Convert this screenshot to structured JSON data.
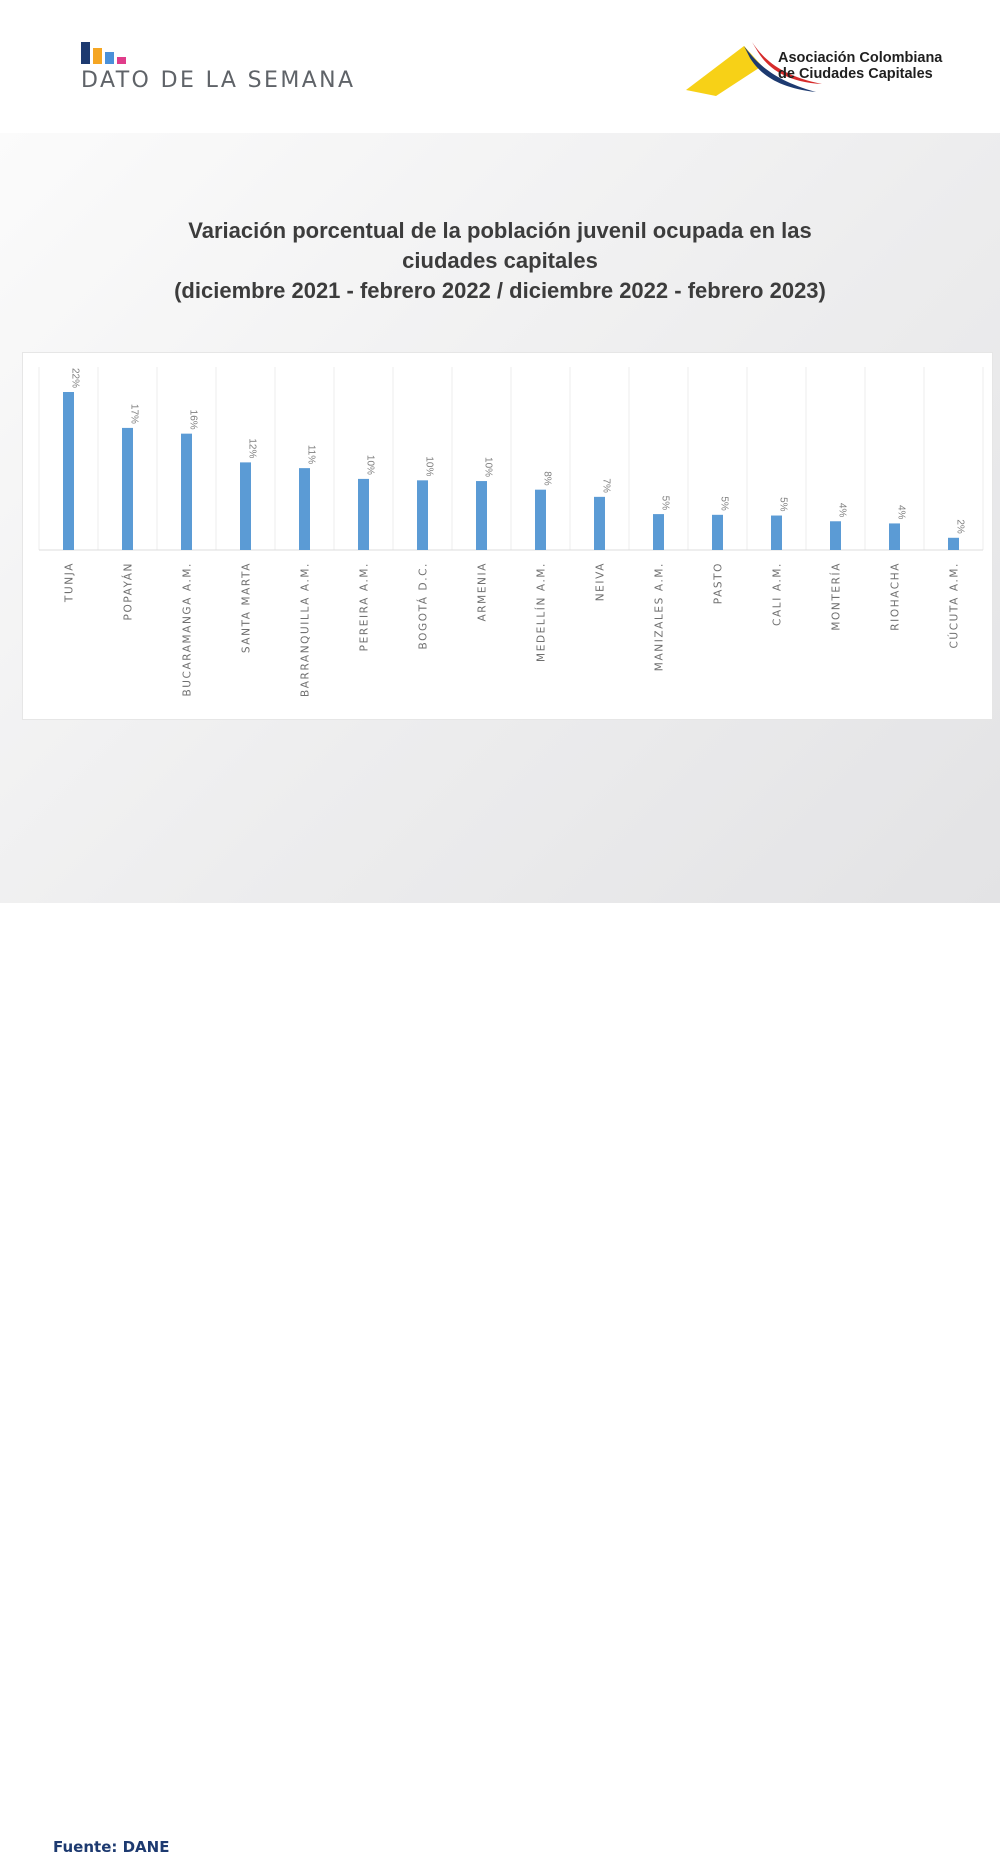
{
  "header": {
    "section_title": "DATO DE LA SEMANA",
    "org_name_line1": "Asociación Colombiana",
    "org_name_line2": "de Ciudades Capitales",
    "week_logo_colors": [
      "#1d3a70",
      "#f5a623",
      "#4a90d9",
      "#e03c8a"
    ],
    "org_logo_colors": [
      "#f7d117",
      "#1d3a70",
      "#d62b2b"
    ]
  },
  "chart_title": {
    "line1": "Variación porcentual de la población juvenil ocupada en las",
    "line2": "ciudades capitales",
    "line3": "(diciembre 2021 - febrero 2022 / diciembre 2022 - febrero 2023)"
  },
  "chart_data": {
    "type": "bar",
    "title": "Variación porcentual de la población juvenil ocupada en las ciudades capitales (diciembre 2021 - febrero 2022 / diciembre 2022 - febrero 2023)",
    "categories": [
      "TUNJA",
      "POPAYÁN",
      "BUCARAMANGA A.M.",
      "SANTA MARTA",
      "BARRANQUILLA A.M.",
      "PEREIRA A.M.",
      "BOGOTÁ D.C.",
      "ARMENIA",
      "MEDELLÍN A.M.",
      "NEIVA",
      "MANIZALES A.M.",
      "PASTO",
      "CALI A.M.",
      "MONTERÍA",
      "RIOHACHA",
      "CÚCUTA A.M."
    ],
    "values": [
      22.0,
      17.0,
      16.2,
      12.2,
      11.4,
      9.9,
      9.7,
      9.6,
      8.4,
      7.4,
      5.0,
      4.9,
      4.8,
      4.0,
      3.7,
      1.7
    ],
    "data_labels": [
      "22%",
      "17%",
      "16%",
      "12%",
      "11%",
      "10%",
      "10%",
      "10%",
      "8%",
      "7%",
      "5%",
      "5%",
      "5%",
      "4%",
      "4%",
      "2%"
    ],
    "xlabel": "",
    "ylabel": "",
    "ylim": [
      0,
      22
    ],
    "grid": "vertical separators",
    "legend": "none",
    "bar_color": "#5b9bd5"
  },
  "footer": {
    "source": "Fuente: DANE"
  }
}
